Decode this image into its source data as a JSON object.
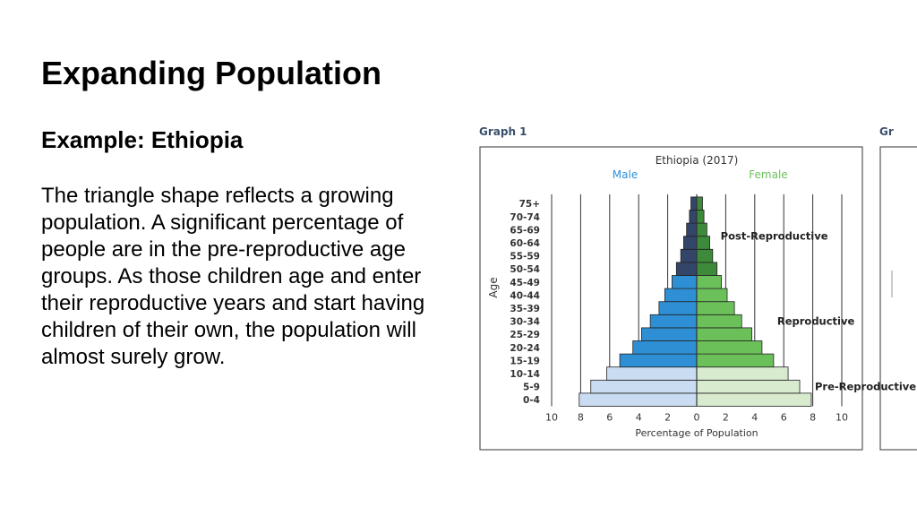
{
  "slide": {
    "title": "Expanding Population",
    "subtitle": "Example:  Ethiopia",
    "body": "The triangle shape reflects a growing population.  A significant percentage of people are in the pre-reproductive age groups.  As those children age and enter their reproductive years and start having children of their own, the population will almost surely grow."
  },
  "figure": {
    "graph_label": "Graph 1",
    "next_graph_label_partial": "Gr"
  },
  "chart_data": {
    "type": "bar",
    "title": "Ethiopia (2017)",
    "xlabel": "Percentage of Population",
    "ylabel": "Age",
    "categories": [
      "0-4",
      "5-9",
      "10-14",
      "15-19",
      "20-24",
      "25-29",
      "30-34",
      "35-39",
      "40-44",
      "45-49",
      "50-54",
      "55-59",
      "60-64",
      "65-69",
      "70-74",
      "75+"
    ],
    "x_ticks": [
      10,
      8,
      6,
      4,
      2,
      0,
      2,
      4,
      6,
      8,
      10
    ],
    "xlim": [
      -10,
      10
    ],
    "series": [
      {
        "name": "Male",
        "values": [
          8.1,
          7.3,
          6.2,
          5.3,
          4.4,
          3.8,
          3.2,
          2.6,
          2.2,
          1.7,
          1.4,
          1.1,
          0.9,
          0.7,
          0.5,
          0.4
        ]
      },
      {
        "name": "Female",
        "values": [
          7.9,
          7.1,
          6.3,
          5.3,
          4.5,
          3.8,
          3.1,
          2.6,
          2.1,
          1.7,
          1.4,
          1.1,
          0.9,
          0.7,
          0.5,
          0.4
        ]
      }
    ],
    "groups": [
      {
        "label": "Pre-Reproductive",
        "start": 0,
        "end": 2
      },
      {
        "label": "Reproductive",
        "start": 3,
        "end": 9
      },
      {
        "label": "Post-Reproductive",
        "start": 10,
        "end": 15
      }
    ],
    "colors": {
      "male_pre": "#c9dcf2",
      "male_rep": "#2e8fd4",
      "male_post": "#34456a",
      "female_pre": "#d9ebcf",
      "female_rep": "#6cc05a",
      "female_post": "#3c8a3a",
      "male_label": "#2e8fd4",
      "female_label": "#6cc05a",
      "bar_stroke": "#222222"
    },
    "grid": true,
    "legend": "top"
  }
}
